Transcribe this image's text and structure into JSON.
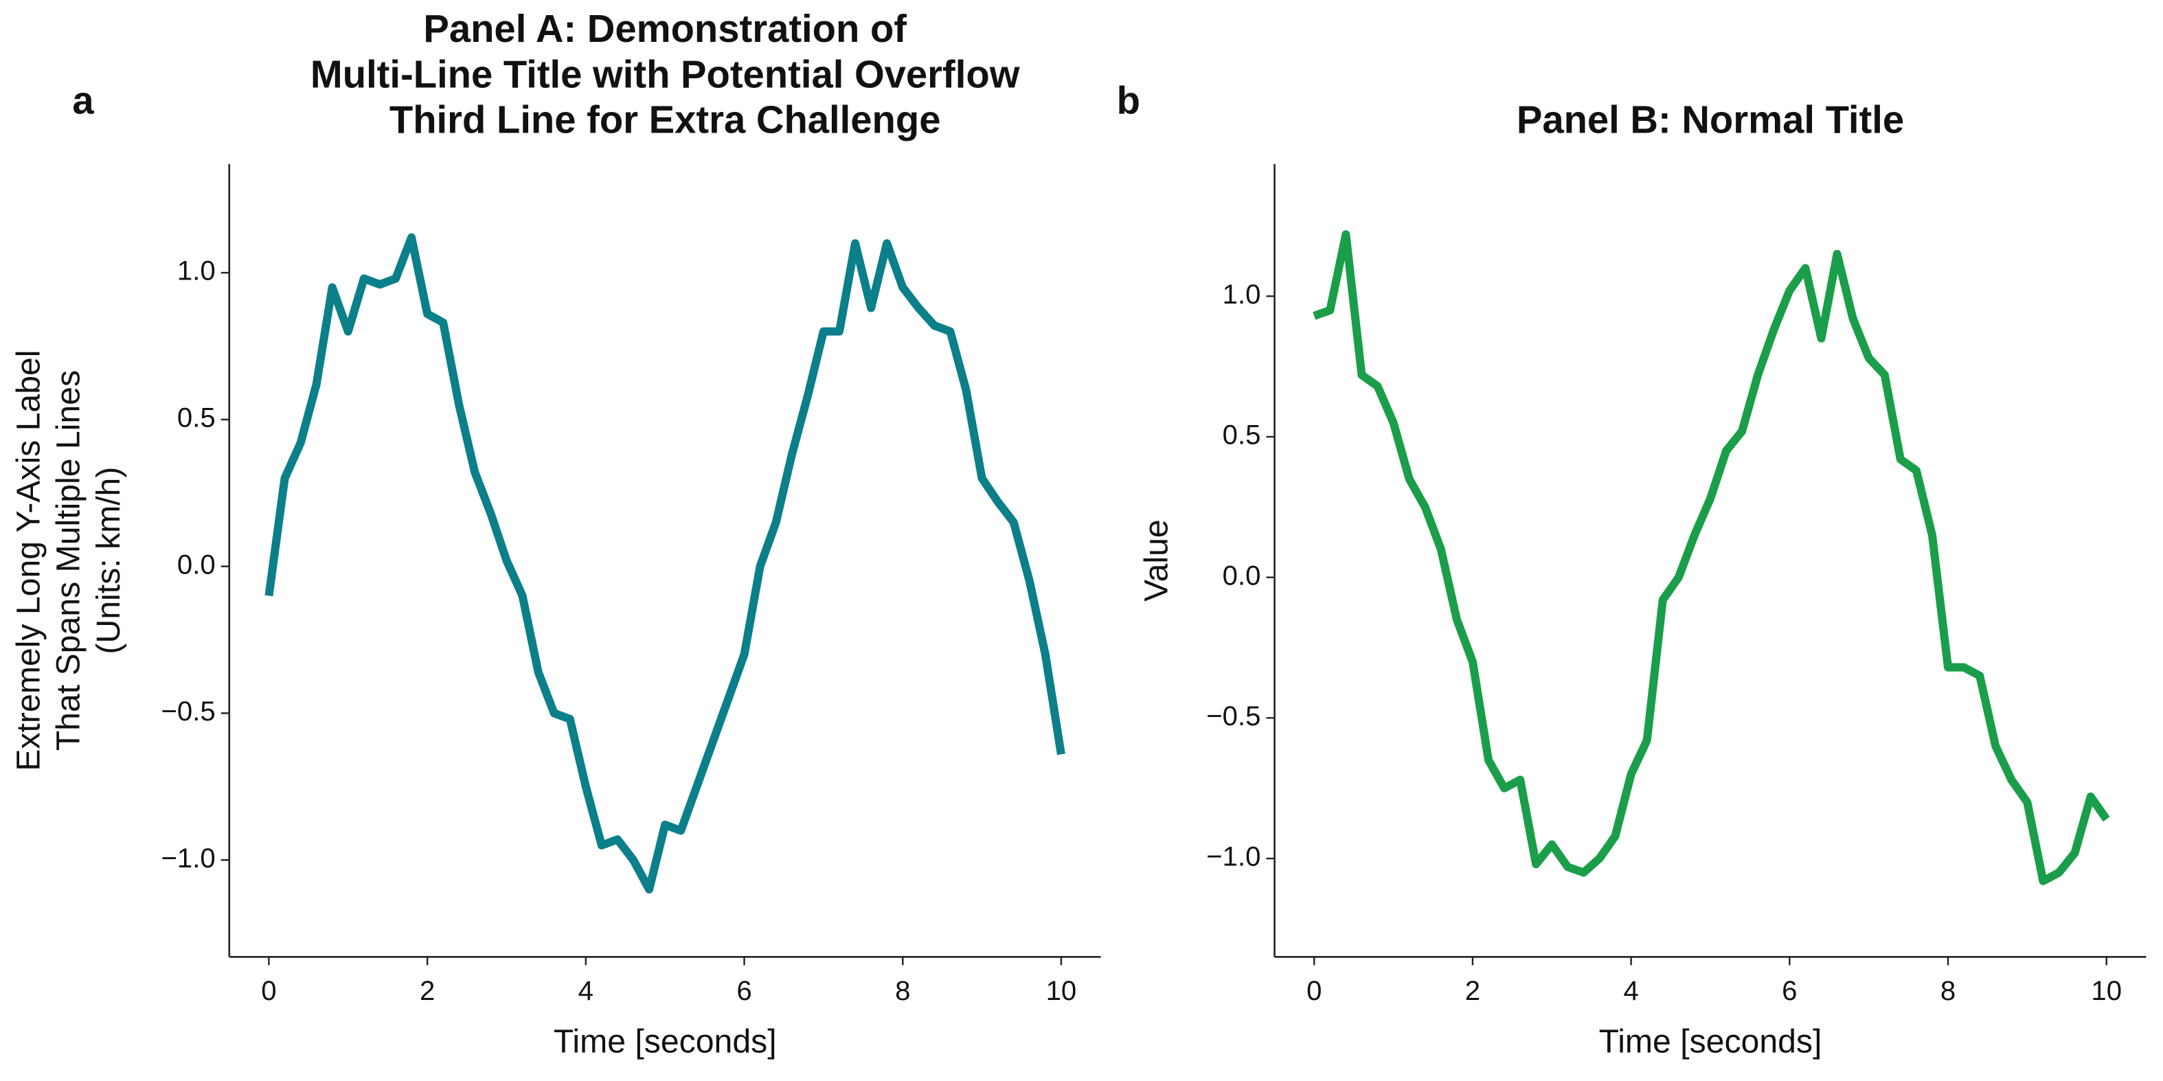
{
  "chart_data": [
    {
      "type": "line",
      "panel_label": "a",
      "title": [
        "Panel A: Demonstration of",
        "Multi-Line Title with Potential Overflow",
        "Third Line for Extra Challenge"
      ],
      "xlabel": "Time [seconds]",
      "ylabel": [
        "Extremely Long Y-Axis Label",
        "That Spans Multiple Lines",
        "(Units: km/h)"
      ],
      "x": [
        0,
        0.2,
        0.4,
        0.6,
        0.8,
        1.0,
        1.2,
        1.4,
        1.6,
        1.8,
        2.0,
        2.2,
        2.4,
        2.6,
        2.8,
        3.0,
        3.2,
        3.4,
        3.6,
        3.8,
        4.0,
        4.2,
        4.4,
        4.6,
        4.8,
        5.0,
        5.2,
        5.4,
        5.6,
        5.8,
        6.0,
        6.2,
        6.4,
        6.6,
        6.8,
        7.0,
        7.2,
        7.4,
        7.6,
        7.8,
        8.0,
        8.2,
        8.4,
        8.6,
        8.8,
        9.0,
        9.2,
        9.4,
        9.6,
        9.8,
        10.0
      ],
      "series": [
        {
          "color": "#0b7f8a",
          "values": [
            -0.1,
            0.3,
            0.42,
            0.62,
            0.95,
            0.8,
            0.98,
            0.96,
            0.98,
            1.12,
            0.86,
            0.83,
            0.55,
            0.32,
            0.18,
            0.02,
            -0.1,
            -0.36,
            -0.5,
            -0.52,
            -0.75,
            -0.95,
            -0.93,
            -1.0,
            -1.1,
            -0.88,
            -0.9,
            -0.75,
            -0.6,
            -0.45,
            -0.3,
            0.0,
            0.15,
            0.38,
            0.58,
            0.8,
            0.8,
            1.1,
            0.88,
            1.1,
            0.95,
            0.88,
            0.82,
            0.8,
            0.6,
            0.3,
            0.22,
            0.15,
            -0.05,
            -0.3,
            -0.64
          ]
        }
      ],
      "xlim": [
        -0.5,
        10.5
      ],
      "ylim": [
        -1.33,
        1.37
      ],
      "xticks": [
        0,
        2,
        4,
        6,
        8,
        10
      ],
      "yticks": [
        {
          "value": -1.0,
          "label": "−1.0"
        },
        {
          "value": -0.5,
          "label": "−0.5"
        },
        {
          "value": 0.0,
          "label": "0.0"
        },
        {
          "value": 0.5,
          "label": "0.5"
        },
        {
          "value": 1.0,
          "label": "1.0"
        }
      ]
    },
    {
      "type": "line",
      "panel_label": "b",
      "title": [
        "Panel B: Normal Title"
      ],
      "xlabel": "Time [seconds]",
      "ylabel": [
        "Value"
      ],
      "x": [
        0,
        0.2,
        0.4,
        0.6,
        0.8,
        1.0,
        1.2,
        1.4,
        1.6,
        1.8,
        2.0,
        2.2,
        2.4,
        2.6,
        2.8,
        3.0,
        3.2,
        3.4,
        3.6,
        3.8,
        4.0,
        4.2,
        4.4,
        4.6,
        4.8,
        5.0,
        5.2,
        5.4,
        5.6,
        5.8,
        6.0,
        6.2,
        6.4,
        6.6,
        6.8,
        7.0,
        7.2,
        7.4,
        7.6,
        7.8,
        8.0,
        8.2,
        8.4,
        8.6,
        8.8,
        9.0,
        9.2,
        9.4,
        9.6,
        9.8,
        10.0
      ],
      "series": [
        {
          "color": "#1a9e4a",
          "values": [
            0.93,
            0.95,
            1.22,
            0.72,
            0.68,
            0.55,
            0.35,
            0.25,
            0.1,
            -0.15,
            -0.3,
            -0.65,
            -0.75,
            -0.72,
            -1.02,
            -0.95,
            -1.03,
            -1.05,
            -1.0,
            -0.92,
            -0.7,
            -0.58,
            -0.08,
            0.0,
            0.15,
            0.28,
            0.45,
            0.52,
            0.72,
            0.88,
            1.02,
            1.1,
            0.85,
            1.15,
            0.92,
            0.78,
            0.72,
            0.42,
            0.38,
            0.15,
            -0.32,
            -0.32,
            -0.35,
            -0.6,
            -0.72,
            -0.8,
            -1.08,
            -1.05,
            -0.98,
            -0.78,
            -0.86
          ]
        }
      ],
      "xlim": [
        -0.5,
        10.5
      ],
      "ylim": [
        -1.35,
        1.47
      ],
      "xticks": [
        0,
        2,
        4,
        6,
        8,
        10
      ],
      "yticks": [
        {
          "value": -1.0,
          "label": "−1.0"
        },
        {
          "value": -0.5,
          "label": "−0.5"
        },
        {
          "value": 0.0,
          "label": "0.0"
        },
        {
          "value": 0.5,
          "label": "0.5"
        },
        {
          "value": 1.0,
          "label": "1.0"
        }
      ]
    }
  ]
}
